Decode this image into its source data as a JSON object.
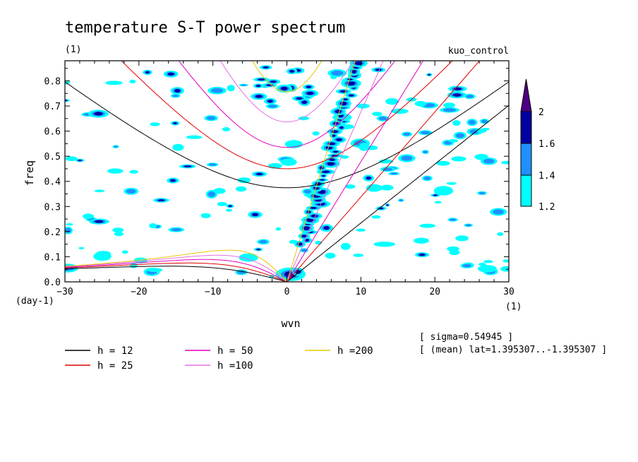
{
  "chart_data": {
    "type": "contour",
    "title": "temperature S-T power spectrum",
    "subtitle_left": "(1)",
    "subtitle_right": "kuo_control",
    "xlabel": "wvn",
    "ylabel": "freq",
    "x_unit": "(1)",
    "y_unit": "(day-1)",
    "xlim": [
      -30,
      30
    ],
    "ylim": [
      0,
      0.88
    ],
    "xticks": [
      "-30",
      "-20",
      "-10",
      "0",
      "10",
      "20",
      "30"
    ],
    "yticks": [
      "0.0",
      "0.1",
      "0.2",
      "0.3",
      "0.4",
      "0.5",
      "0.6",
      "0.7",
      "0.8"
    ],
    "colorbar": {
      "levels": [
        "1.2",
        "1.4",
        "1.6",
        "2"
      ],
      "colors": [
        "#00ffff",
        "#1e90ff",
        "#0000a0",
        "#4b0082"
      ]
    },
    "dispersion_curves": [
      {
        "label": "h = 12",
        "h": 12,
        "color": "#000000"
      },
      {
        "label": "h = 25",
        "h": 25,
        "color": "#e00000"
      },
      {
        "label": "h = 50",
        "h": 50,
        "color": "#e000c0"
      },
      {
        "label": "h =100",
        "h": 100,
        "color": "#e070e0"
      },
      {
        "label": "h =200",
        "h": 200,
        "color": "#e8c800"
      }
    ],
    "annotations": [
      "[ sigma=0.54945 ]",
      "[ (mean) lat=1.395307..-1.395307 ]"
    ]
  }
}
